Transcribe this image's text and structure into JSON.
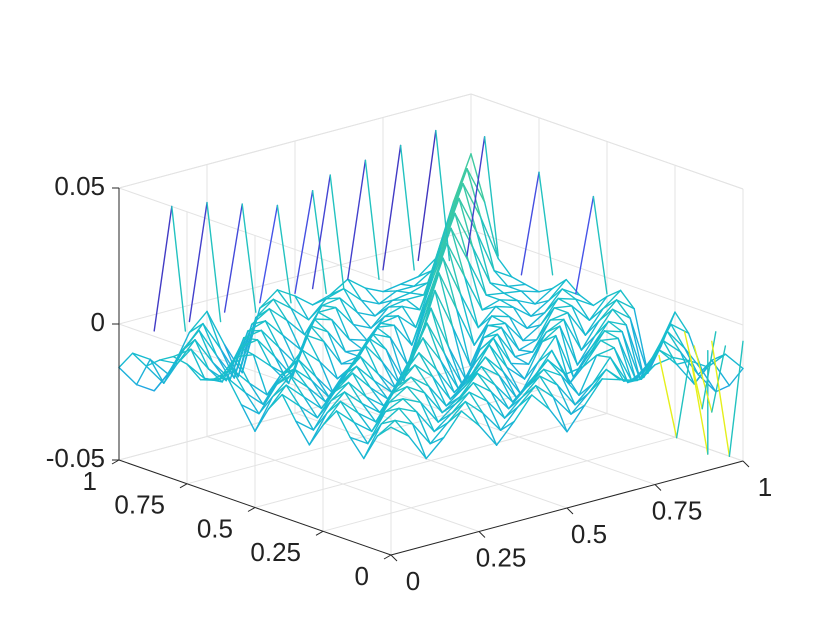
{
  "chart_data": {
    "type": "mesh3d",
    "title": "",
    "xlabel": "",
    "ylabel": "",
    "zlabel": "",
    "xlim": [
      0,
      1
    ],
    "ylim": [
      0,
      1
    ],
    "zlim": [
      -0.05,
      0.05
    ],
    "grid": true,
    "colormap": "parula",
    "x_ticks": [
      "0",
      "0.25",
      "0.5",
      "0.75",
      "1"
    ],
    "y_ticks": [
      "0",
      "0.25",
      "0.5",
      "0.75",
      "1"
    ],
    "z_ticks": [
      "-0.05",
      "0",
      "0.05"
    ],
    "x": [
      0,
      0.05,
      0.1,
      0.15,
      0.2,
      0.25,
      0.3,
      0.35,
      0.4,
      0.45,
      0.5,
      0.55,
      0.6,
      0.65,
      0.7,
      0.75,
      0.8,
      0.85,
      0.9,
      0.95,
      1
    ],
    "y": [
      0,
      0.05,
      0.1,
      0.15,
      0.2,
      0.25,
      0.3,
      0.35,
      0.4,
      0.45,
      0.5,
      0.55,
      0.6,
      0.65,
      0.7,
      0.75,
      0.8,
      0.85,
      0.9,
      0.95,
      1
    ],
    "z": [
      [
        -0.003,
        -0.008,
        -0.018,
        -0.012,
        -0.004,
        -0.011,
        -0.02,
        -0.013,
        -0.005,
        -0.012,
        -0.022,
        -0.014,
        -0.006,
        -0.008,
        -0.01,
        -0.006,
        -0.005,
        -0.008,
        -0.012,
        -0.009,
        -0.016
      ],
      [
        -0.008,
        -0.004,
        -0.007,
        -0.016,
        -0.01,
        -0.004,
        -0.01,
        -0.018,
        -0.011,
        -0.005,
        -0.011,
        -0.019,
        -0.013,
        -0.006,
        -0.012,
        -0.013,
        -0.004,
        -0.011,
        -0.02,
        -0.013,
        -0.024
      ],
      [
        -0.018,
        -0.007,
        -0.003,
        -0.006,
        -0.015,
        -0.01,
        -0.004,
        -0.009,
        -0.017,
        -0.011,
        -0.005,
        -0.01,
        -0.019,
        -0.013,
        -0.005,
        -0.016,
        -0.013,
        -0.004,
        -0.01,
        -0.02,
        -0.028
      ],
      [
        -0.012,
        -0.016,
        -0.006,
        -0.003,
        -0.006,
        -0.015,
        -0.01,
        -0.004,
        -0.009,
        -0.017,
        -0.011,
        -0.006,
        -0.01,
        -0.019,
        -0.006,
        -0.005,
        -0.019,
        -0.014,
        -0.004,
        -0.012,
        -0.022
      ],
      [
        -0.004,
        -0.01,
        -0.015,
        -0.006,
        -0.002,
        -0.006,
        -0.015,
        -0.011,
        -0.004,
        -0.01,
        -0.018,
        -0.012,
        -0.006,
        -0.013,
        -0.012,
        -0.004,
        -0.005,
        -0.022,
        -0.015,
        -0.005,
        -0.01
      ],
      [
        -0.011,
        -0.004,
        -0.01,
        -0.015,
        -0.006,
        -0.002,
        -0.007,
        -0.016,
        -0.011,
        -0.005,
        -0.01,
        -0.02,
        -0.014,
        -0.006,
        -0.02,
        -0.012,
        -0.004,
        -0.006,
        -0.025,
        -0.016,
        -0.004
      ],
      [
        -0.02,
        -0.01,
        -0.004,
        -0.01,
        -0.015,
        -0.007,
        -0.001,
        -0.007,
        -0.017,
        -0.012,
        -0.005,
        -0.012,
        -0.022,
        -0.012,
        -0.004,
        -0.021,
        -0.012,
        -0.004,
        -0.007,
        -0.028,
        -0.018
      ],
      [
        -0.013,
        -0.018,
        -0.009,
        -0.004,
        -0.011,
        -0.016,
        -0.007,
        0.0,
        -0.008,
        -0.018,
        -0.013,
        -0.004,
        -0.014,
        -0.02,
        -0.008,
        -0.004,
        -0.02,
        -0.011,
        -0.003,
        -0.008,
        -0.03
      ],
      [
        -0.005,
        -0.011,
        -0.017,
        -0.009,
        -0.004,
        -0.011,
        -0.017,
        -0.008,
        0.002,
        -0.008,
        -0.02,
        -0.012,
        -0.005,
        -0.016,
        -0.018,
        -0.008,
        -0.005,
        -0.018,
        -0.009,
        -0.003,
        -0.008
      ],
      [
        -0.012,
        -0.005,
        -0.011,
        -0.017,
        -0.01,
        -0.005,
        -0.012,
        -0.018,
        -0.008,
        0.004,
        -0.009,
        -0.022,
        -0.011,
        -0.007,
        -0.017,
        -0.017,
        -0.007,
        -0.006,
        -0.016,
        -0.008,
        -0.003
      ],
      [
        -0.022,
        -0.011,
        -0.005,
        -0.011,
        -0.018,
        -0.01,
        -0.005,
        -0.013,
        -0.02,
        -0.009,
        0.006,
        -0.01,
        -0.024,
        -0.01,
        -0.008,
        -0.018,
        -0.016,
        -0.006,
        -0.007,
        -0.014,
        -0.007
      ],
      [
        -0.014,
        -0.019,
        -0.01,
        -0.006,
        -0.012,
        -0.02,
        -0.012,
        -0.004,
        -0.012,
        -0.022,
        -0.01,
        0.009,
        -0.006,
        -0.022,
        -0.009,
        -0.01,
        -0.018,
        -0.014,
        -0.006,
        -0.008,
        -0.012
      ],
      [
        -0.006,
        -0.013,
        -0.019,
        -0.01,
        -0.006,
        -0.014,
        -0.022,
        -0.014,
        -0.005,
        -0.011,
        -0.024,
        -0.006,
        0.012,
        -0.003,
        -0.018,
        -0.009,
        -0.011,
        -0.017,
        -0.013,
        -0.006,
        -0.01
      ],
      [
        -0.008,
        -0.006,
        -0.013,
        -0.019,
        -0.013,
        -0.006,
        -0.012,
        -0.02,
        -0.016,
        -0.007,
        -0.01,
        -0.022,
        -0.003,
        0.014,
        -0.001,
        -0.015,
        -0.009,
        -0.011,
        -0.016,
        -0.012,
        -0.006
      ],
      [
        -0.01,
        -0.012,
        -0.005,
        -0.006,
        -0.012,
        -0.02,
        -0.004,
        -0.008,
        -0.018,
        -0.017,
        -0.008,
        -0.009,
        -0.018,
        -0.001,
        0.016,
        0.002,
        -0.012,
        -0.01,
        -0.012,
        -0.015,
        -0.011
      ],
      [
        -0.006,
        -0.013,
        -0.016,
        -0.005,
        -0.004,
        -0.012,
        -0.021,
        -0.004,
        -0.008,
        -0.017,
        -0.018,
        -0.01,
        -0.009,
        -0.015,
        0.002,
        0.018,
        0.004,
        -0.01,
        -0.011,
        -0.012,
        -0.014
      ],
      [
        -0.005,
        -0.004,
        -0.013,
        -0.019,
        -0.005,
        -0.004,
        -0.012,
        -0.02,
        -0.005,
        -0.007,
        -0.016,
        -0.018,
        -0.011,
        -0.009,
        -0.012,
        0.004,
        0.02,
        0.006,
        -0.009,
        -0.012,
        -0.013
      ],
      [
        -0.008,
        -0.011,
        -0.004,
        -0.014,
        -0.022,
        -0.006,
        -0.004,
        -0.011,
        -0.018,
        -0.006,
        -0.006,
        -0.014,
        -0.017,
        -0.011,
        -0.01,
        -0.01,
        0.006,
        0.022,
        0.008,
        -0.008,
        -0.012
      ],
      [
        -0.012,
        -0.02,
        -0.01,
        -0.004,
        -0.015,
        -0.025,
        -0.007,
        -0.003,
        -0.009,
        -0.016,
        -0.007,
        -0.006,
        -0.013,
        -0.016,
        -0.012,
        -0.011,
        -0.009,
        0.008,
        0.024,
        0.01,
        -0.007
      ],
      [
        -0.009,
        -0.013,
        -0.02,
        -0.012,
        -0.005,
        -0.016,
        -0.028,
        -0.008,
        -0.003,
        -0.008,
        -0.014,
        -0.008,
        -0.006,
        -0.012,
        -0.015,
        -0.012,
        -0.012,
        -0.008,
        0.01,
        0.026,
        0.012
      ],
      [
        -0.016,
        -0.024,
        -0.028,
        -0.022,
        -0.01,
        -0.004,
        -0.018,
        -0.03,
        -0.008,
        -0.003,
        -0.007,
        -0.012,
        -0.01,
        -0.006,
        -0.011,
        -0.014,
        -0.013,
        -0.012,
        -0.007,
        0.012,
        0.028
      ]
    ],
    "spikes": [
      {
        "x": 0.15,
        "y": 1.0,
        "z": 0.038
      },
      {
        "x": 0.25,
        "y": 1.0,
        "z": 0.036
      },
      {
        "x": 0.35,
        "y": 1.0,
        "z": 0.032
      },
      {
        "x": 0.45,
        "y": 1.0,
        "z": 0.028
      },
      {
        "x": 0.55,
        "y": 1.0,
        "z": 0.03
      },
      {
        "x": 0.6,
        "y": 1.0,
        "z": 0.034
      },
      {
        "x": 0.7,
        "y": 1.0,
        "z": 0.036
      },
      {
        "x": 0.8,
        "y": 1.0,
        "z": 0.038
      },
      {
        "x": 0.9,
        "y": 1.0,
        "z": 0.04
      },
      {
        "x": 1.0,
        "y": 0.95,
        "z": 0.036
      },
      {
        "x": 1.0,
        "y": 0.75,
        "z": 0.03
      },
      {
        "x": 1.0,
        "y": 0.55,
        "z": 0.028
      },
      {
        "x": 0.85,
        "y": 0.05,
        "z": -0.038
      },
      {
        "x": 0.9,
        "y": 0.0,
        "z": -0.044
      },
      {
        "x": 0.95,
        "y": 0.05,
        "z": -0.032
      },
      {
        "x": 1.0,
        "y": 0.15,
        "z": -0.036
      },
      {
        "x": 1.0,
        "y": 0.05,
        "z": -0.05
      }
    ]
  }
}
